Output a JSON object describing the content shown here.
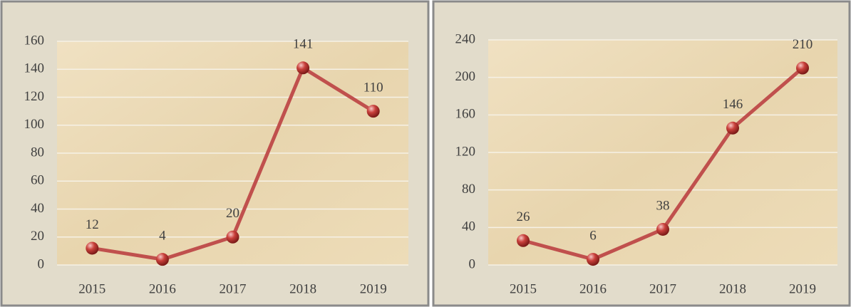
{
  "chart_data": [
    {
      "type": "line",
      "categories": [
        "2015",
        "2016",
        "2017",
        "2018",
        "2019"
      ],
      "values": [
        12,
        4,
        20,
        141,
        110
      ],
      "color": "#c0504d",
      "ylim": [
        0,
        160
      ],
      "yticks": [
        0,
        20,
        40,
        60,
        80,
        100,
        120,
        140,
        160
      ],
      "grid": true
    },
    {
      "type": "line",
      "categories": [
        "2015",
        "2016",
        "2017",
        "2018",
        "2019"
      ],
      "values": [
        26,
        6,
        38,
        146,
        210
      ],
      "color": "#c0504d",
      "ylim": [
        0,
        240
      ],
      "yticks": [
        0,
        40,
        80,
        120,
        160,
        200,
        240
      ],
      "grid": true
    }
  ]
}
